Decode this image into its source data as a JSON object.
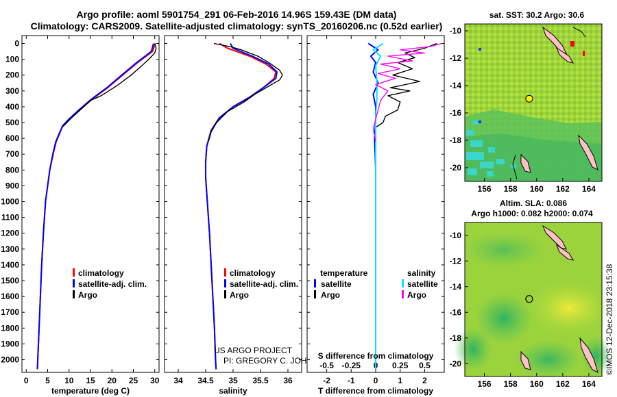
{
  "header": {
    "title_line1": "Argo profile: aoml 5901754_291 06-Feb-2016 14.96S 159.43E (DM data)",
    "title_line2": "Climatology: CARS2009. Satellite-adjusted climatology: synTS_20160206.nc (0.52d earlier)"
  },
  "credits": {
    "project": "US ARGO PROJECT",
    "pi": "PI: GREGORY C. JOHNSON",
    "stamp": "©IMOS 12-Dec-2018 23:15:38"
  },
  "colors": {
    "climatology": "#ff0000",
    "satellite": "#0000ff",
    "argo": "#000000",
    "sal_satellite": "#00e5ff",
    "sal_argo": "#ff00ff"
  },
  "depth_ticks": [
    "0",
    "100",
    "200",
    "300",
    "400",
    "500",
    "600",
    "700",
    "800",
    "900",
    "1000",
    "1100",
    "1200",
    "1300",
    "1400",
    "1500",
    "1600",
    "1700",
    "1800",
    "1900",
    "2000"
  ],
  "chart_data": [
    {
      "type": "line",
      "name": "temperature-profile",
      "xlabel": "temperature (deg C)",
      "xlim": [
        -1,
        31
      ],
      "ylim": [
        2080,
        -50
      ],
      "xticks": [
        "0",
        "5",
        "10",
        "15",
        "20",
        "25",
        "30"
      ],
      "legend": [
        "climatology",
        "satellite-adj. clim.",
        "Argo"
      ],
      "series": [
        {
          "name": "climatology",
          "points": [
            [
              30.1,
              0
            ],
            [
              29.5,
              50
            ],
            [
              26.0,
              120
            ],
            [
              22.5,
              200
            ],
            [
              19.0,
              280
            ],
            [
              15.5,
              350
            ],
            [
              12.5,
              420
            ],
            [
              10.0,
              480
            ],
            [
              8.5,
              520
            ],
            [
              7.8,
              570
            ],
            [
              7.0,
              620
            ],
            [
              6.3,
              700
            ],
            [
              5.5,
              800
            ],
            [
              5.0,
              900
            ],
            [
              4.5,
              1000
            ],
            [
              4.0,
              1200
            ],
            [
              3.6,
              1400
            ],
            [
              3.3,
              1600
            ],
            [
              3.0,
              1800
            ],
            [
              2.7,
              2000
            ],
            [
              2.6,
              2060
            ]
          ]
        },
        {
          "name": "satellite-adj. clim.",
          "points": [
            [
              29.7,
              0
            ],
            [
              29.2,
              50
            ],
            [
              25.8,
              120
            ],
            [
              22.3,
              200
            ],
            [
              18.8,
              280
            ],
            [
              15.3,
              350
            ],
            [
              12.3,
              420
            ],
            [
              9.9,
              480
            ],
            [
              8.5,
              520
            ],
            [
              7.7,
              570
            ],
            [
              6.9,
              620
            ],
            [
              6.2,
              700
            ],
            [
              5.5,
              800
            ],
            [
              5.0,
              900
            ],
            [
              4.5,
              1000
            ],
            [
              4.0,
              1200
            ],
            [
              3.6,
              1400
            ],
            [
              3.3,
              1600
            ],
            [
              3.0,
              1800
            ],
            [
              2.7,
              2000
            ],
            [
              2.6,
              2060
            ]
          ]
        },
        {
          "name": "Argo",
          "points": [
            [
              30.0,
              0
            ],
            [
              30.3,
              30
            ],
            [
              30.0,
              60
            ],
            [
              28.6,
              100
            ],
            [
              27.0,
              140
            ],
            [
              24.5,
              200
            ],
            [
              21.0,
              270
            ],
            [
              17.5,
              330
            ],
            [
              15.0,
              360
            ],
            [
              13.0,
              410
            ],
            [
              11.0,
              460
            ],
            [
              9.5,
              500
            ],
            [
              8.4,
              530
            ]
          ]
        }
      ]
    },
    {
      "type": "line",
      "name": "salinity-profile",
      "xlabel": "salinity",
      "xlim": [
        33.75,
        36.25
      ],
      "ylim": [
        2080,
        -50
      ],
      "xticks": [
        "34",
        "34.5",
        "35",
        "35.5",
        "36"
      ],
      "legend": [
        "climatology",
        "satellite-adj. clim.",
        "Argo"
      ],
      "series": [
        {
          "name": "climatology",
          "points": [
            [
              34.75,
              0
            ],
            [
              34.9,
              30
            ],
            [
              35.3,
              80
            ],
            [
              35.6,
              130
            ],
            [
              35.78,
              180
            ],
            [
              35.75,
              220
            ],
            [
              35.55,
              280
            ],
            [
              35.3,
              340
            ],
            [
              35.0,
              400
            ],
            [
              34.75,
              470
            ],
            [
              34.6,
              550
            ],
            [
              34.52,
              650
            ],
            [
              34.5,
              750
            ],
            [
              34.5,
              850
            ],
            [
              34.53,
              1000
            ],
            [
              34.57,
              1200
            ],
            [
              34.6,
              1400
            ],
            [
              34.63,
              1600
            ],
            [
              34.66,
              1800
            ],
            [
              34.68,
              2000
            ],
            [
              34.69,
              2060
            ]
          ]
        },
        {
          "name": "satellite-adj. clim.",
          "points": [
            [
              34.95,
              0
            ],
            [
              35.0,
              30
            ],
            [
              35.35,
              80
            ],
            [
              35.65,
              130
            ],
            [
              35.8,
              180
            ],
            [
              35.78,
              220
            ],
            [
              35.55,
              280
            ],
            [
              35.3,
              340
            ],
            [
              35.0,
              400
            ],
            [
              34.75,
              470
            ],
            [
              34.6,
              550
            ],
            [
              34.52,
              650
            ],
            [
              34.5,
              750
            ],
            [
              34.5,
              850
            ],
            [
              34.53,
              1000
            ],
            [
              34.57,
              1200
            ],
            [
              34.6,
              1400
            ],
            [
              34.63,
              1600
            ],
            [
              34.66,
              1800
            ],
            [
              34.68,
              2000
            ],
            [
              34.69,
              2060
            ]
          ]
        },
        {
          "name": "Argo",
          "points": [
            [
              34.65,
              0
            ],
            [
              34.95,
              20
            ],
            [
              35.15,
              40
            ],
            [
              35.45,
              80
            ],
            [
              35.65,
              120
            ],
            [
              35.85,
              170
            ],
            [
              35.9,
              200
            ],
            [
              35.85,
              230
            ],
            [
              35.65,
              270
            ],
            [
              35.4,
              320
            ],
            [
              35.2,
              370
            ],
            [
              34.9,
              430
            ],
            [
              34.7,
              500
            ],
            [
              34.6,
              560
            ],
            [
              34.55,
              620
            ]
          ]
        }
      ]
    },
    {
      "type": "line",
      "name": "difference-profile",
      "xlabel": "T difference from climatology",
      "xlabel_top": "S difference from climatology",
      "xlim": [
        -2.8,
        2.8
      ],
      "ylim": [
        2080,
        -50
      ],
      "xticks": [
        "-2",
        "-1",
        "0",
        "1",
        "2"
      ],
      "xticks_top": [
        "-0.5",
        "-0.25",
        "0",
        "0.25",
        "0.5"
      ],
      "legend_title_left": "temperature",
      "legend_title_right": "salinity",
      "legend_left": [
        "satellite",
        "Argo"
      ],
      "legend_right": [
        "satellite",
        "Argo"
      ],
      "series": [
        {
          "name": "T satellite",
          "points": [
            [
              -0.3,
              0
            ],
            [
              0.1,
              40
            ],
            [
              -0.2,
              80
            ],
            [
              0.0,
              120
            ],
            [
              -0.1,
              180
            ],
            [
              0.1,
              250
            ],
            [
              -0.1,
              320
            ],
            [
              0.0,
              400
            ],
            [
              0.0,
              500
            ],
            [
              -0.05,
              600
            ],
            [
              -0.02,
              700
            ],
            [
              0.0,
              800
            ],
            [
              0.0,
              1000
            ],
            [
              0.0,
              1200
            ],
            [
              0.0,
              1500
            ],
            [
              0.0,
              1800
            ],
            [
              0.0,
              2060
            ]
          ]
        },
        {
          "name": "T Argo",
          "points": [
            [
              2.5,
              0
            ],
            [
              2.0,
              30
            ],
            [
              1.2,
              60
            ],
            [
              1.6,
              90
            ],
            [
              0.9,
              120
            ],
            [
              1.5,
              160
            ],
            [
              0.7,
              200
            ],
            [
              1.8,
              240
            ],
            [
              0.6,
              280
            ],
            [
              1.4,
              300
            ],
            [
              0.5,
              330
            ],
            [
              1.0,
              370
            ],
            [
              0.9,
              420
            ],
            [
              0.4,
              460
            ],
            [
              0.3,
              500
            ],
            [
              0.0,
              530
            ]
          ]
        },
        {
          "name": "S satellite",
          "points": [
            [
              0.3,
              0
            ],
            [
              -0.1,
              40
            ],
            [
              0.2,
              80
            ],
            [
              0.0,
              140
            ],
            [
              0.05,
              250
            ],
            [
              0.05,
              350
            ],
            [
              0.0,
              450
            ],
            [
              0.0,
              600
            ],
            [
              0.0,
              800
            ],
            [
              0.0,
              1100
            ],
            [
              0.0,
              1500
            ],
            [
              0.0,
              1800
            ],
            [
              0.0,
              2060
            ]
          ]
        },
        {
          "name": "S Argo",
          "points": [
            [
              2.7,
              0
            ],
            [
              2.2,
              20
            ],
            [
              1.0,
              40
            ],
            [
              2.0,
              60
            ],
            [
              0.5,
              80
            ],
            [
              1.5,
              110
            ],
            [
              0.2,
              130
            ],
            [
              1.0,
              160
            ],
            [
              0.1,
              190
            ],
            [
              0.8,
              220
            ],
            [
              0.0,
              260
            ],
            [
              0.5,
              300
            ],
            [
              0.2,
              360
            ],
            [
              0.1,
              420
            ],
            [
              0.0,
              480
            ],
            [
              -0.1,
              540
            ],
            [
              0.0,
              620
            ]
          ]
        }
      ]
    }
  ],
  "maps": {
    "sst": {
      "title": "sat. SST: 30.2 Argo: 30.6",
      "xticks": [
        "156",
        "158",
        "160",
        "162",
        "164"
      ],
      "yticks": [
        "-10",
        "-12",
        "-14",
        "-16",
        "-18",
        "-20"
      ],
      "lon_range": [
        154.5,
        165
      ],
      "lat_range": [
        -21,
        -9.5
      ],
      "argo_position": [
        159.43,
        -14.96
      ]
    },
    "sla": {
      "title1": "Altim. SLA: 0.086",
      "title2": "Argo h1000: 0.082 h2000: 0.074",
      "xticks": [
        "156",
        "158",
        "160",
        "162",
        "164"
      ],
      "yticks": [
        "-10",
        "-12",
        "-14",
        "-16",
        "-18",
        "-20"
      ],
      "lon_range": [
        154.5,
        165
      ],
      "lat_range": [
        -21,
        -9
      ],
      "argo_position": [
        159.43,
        -14.96
      ]
    }
  }
}
